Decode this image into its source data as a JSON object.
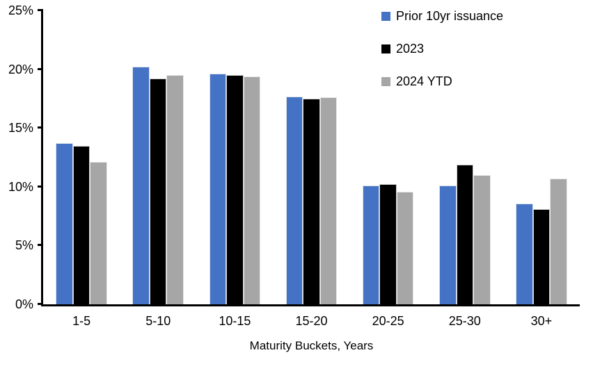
{
  "chart_data": {
    "type": "bar",
    "title": "",
    "categories": [
      "1-5",
      "5-10",
      "10-15",
      "15-20",
      "20-25",
      "25-30",
      "30+"
    ],
    "series": [
      {
        "name": "Prior 10yr issuance",
        "color": "#4472C4",
        "values": [
          13.7,
          20.2,
          19.6,
          17.7,
          10.1,
          10.1,
          8.6
        ]
      },
      {
        "name": "2023",
        "color": "#000000",
        "values": [
          13.5,
          19.2,
          19.5,
          17.5,
          10.2,
          11.9,
          8.1
        ]
      },
      {
        "name": "2024 YTD",
        "color": "#A6A6A6",
        "values": [
          12.1,
          19.5,
          19.4,
          17.6,
          9.6,
          11.0,
          10.7
        ]
      }
    ],
    "xlabel": "Maturity Buckets, Years",
    "ylabel": "",
    "ylim": [
      0,
      25
    ],
    "ytick_labels": [
      "0%",
      "5%",
      "10%",
      "15%",
      "20%",
      "25%"
    ],
    "grid": false,
    "legend_position": "top-right",
    "axis_color": "#000000",
    "background": "#FFFFFF"
  }
}
